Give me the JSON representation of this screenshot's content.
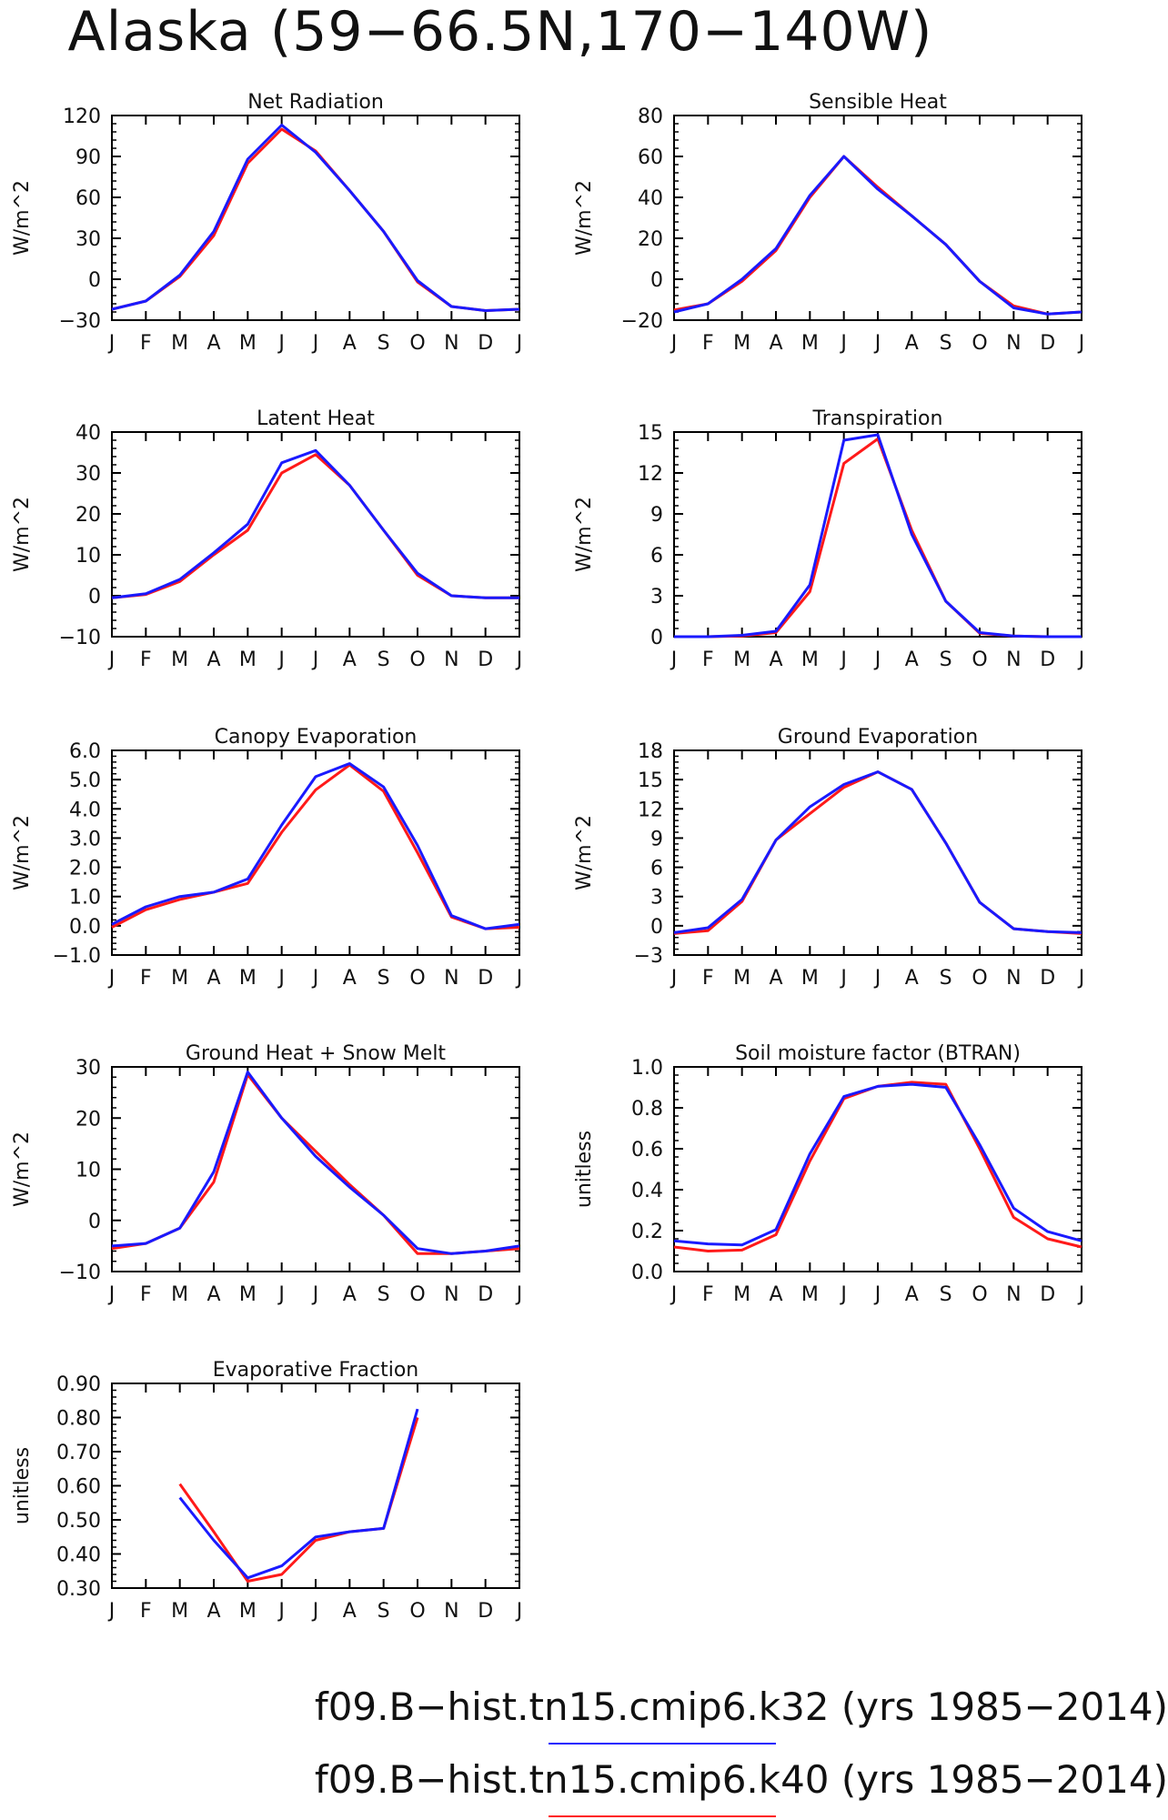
{
  "title": "Alaska (59−66.5N,170−140W)",
  "months": [
    "J",
    "F",
    "M",
    "A",
    "M",
    "J",
    "J",
    "A",
    "S",
    "O",
    "N",
    "D",
    "J"
  ],
  "series_colors": {
    "k32": "#1a1aff",
    "k40": "#ff1a1a"
  },
  "legend": [
    {
      "run": "f09.B−hist.tn15.cmip6.k32",
      "years": "(yrs 1985−2014)",
      "color": "#1a1aff"
    },
    {
      "run": "f09.B−hist.tn15.cmip6.k40",
      "years": "(yrs 1985−2014)",
      "color": "#ff1a1a"
    }
  ],
  "chart_data": [
    {
      "type": "line",
      "title": "Net Radiation",
      "ylabel": "W/m^2",
      "ylim": [
        -30,
        120
      ],
      "yticks": [
        "−30",
        "0",
        "30",
        "60",
        "90",
        "120"
      ],
      "series": [
        {
          "name": "f09.B−hist.tn15.cmip6.k32",
          "values": [
            -22,
            -16,
            3,
            35,
            88,
            113,
            93,
            65,
            35,
            -1,
            -20,
            -23,
            -22
          ]
        },
        {
          "name": "f09.B−hist.tn15.cmip6.k40",
          "values": [
            -22,
            -16,
            2,
            32,
            85,
            110,
            94,
            65,
            35,
            -2,
            -20,
            -23,
            -22
          ]
        }
      ]
    },
    {
      "type": "line",
      "title": "Sensible Heat",
      "ylabel": "W/m^2",
      "ylim": [
        -20,
        80
      ],
      "yticks": [
        "−20",
        "0",
        "20",
        "40",
        "60",
        "80"
      ],
      "series": [
        {
          "name": "f09.B−hist.tn15.cmip6.k32",
          "values": [
            -16,
            -12,
            0,
            15,
            41,
            60,
            44,
            31,
            17,
            -1,
            -14,
            -17,
            -16
          ]
        },
        {
          "name": "f09.B−hist.tn15.cmip6.k40",
          "values": [
            -15,
            -12,
            -1,
            14,
            40,
            60,
            45,
            31,
            17,
            -1,
            -13,
            -17,
            -16
          ]
        }
      ]
    },
    {
      "type": "line",
      "title": "Latent Heat",
      "ylabel": "W/m^2",
      "ylim": [
        -10,
        40
      ],
      "yticks": [
        "−10",
        "0",
        "10",
        "20",
        "30",
        "40"
      ],
      "series": [
        {
          "name": "f09.B−hist.tn15.cmip6.k32",
          "values": [
            -0.5,
            0.5,
            4,
            10.5,
            17.5,
            32.5,
            35.5,
            27,
            16,
            5.5,
            0,
            -0.5,
            -0.5
          ]
        },
        {
          "name": "f09.B−hist.tn15.cmip6.k40",
          "values": [
            -0.5,
            0.3,
            3.5,
            10,
            16,
            30,
            34.5,
            27,
            16,
            5,
            0,
            -0.5,
            -0.5
          ]
        }
      ]
    },
    {
      "type": "line",
      "title": "Transpiration",
      "ylabel": "W/m^2",
      "ylim": [
        0,
        15
      ],
      "yticks": [
        "0",
        "3",
        "6",
        "9",
        "12",
        "15"
      ],
      "series": [
        {
          "name": "f09.B−hist.tn15.cmip6.k32",
          "values": [
            0,
            0,
            0.1,
            0.4,
            3.8,
            14.4,
            14.8,
            7.5,
            2.6,
            0.3,
            0.05,
            0,
            0
          ]
        },
        {
          "name": "f09.B−hist.tn15.cmip6.k40",
          "values": [
            0,
            0,
            0.05,
            0.3,
            3.3,
            12.7,
            14.5,
            7.8,
            2.6,
            0.25,
            0.05,
            0,
            0
          ]
        }
      ]
    },
    {
      "type": "line",
      "title": "Canopy Evaporation",
      "ylabel": "W/m^2",
      "ylim": [
        -1,
        6
      ],
      "yticks": [
        "−1.0",
        "0.0",
        "1.0",
        "2.0",
        "3.0",
        "4.0",
        "5.0",
        "6.0"
      ],
      "series": [
        {
          "name": "f09.B−hist.tn15.cmip6.k32",
          "values": [
            0.05,
            0.65,
            1.0,
            1.15,
            1.6,
            3.45,
            5.1,
            5.55,
            4.75,
            2.75,
            0.35,
            -0.1,
            0.05
          ]
        },
        {
          "name": "f09.B−hist.tn15.cmip6.k40",
          "values": [
            -0.05,
            0.55,
            0.9,
            1.15,
            1.45,
            3.2,
            4.65,
            5.5,
            4.6,
            2.5,
            0.3,
            -0.1,
            -0.05
          ]
        }
      ]
    },
    {
      "type": "line",
      "title": "Ground Evaporation",
      "ylabel": "W/m^2",
      "ylim": [
        -3,
        18
      ],
      "yticks": [
        "−3",
        "0",
        "3",
        "6",
        "9",
        "12",
        "15",
        "18"
      ],
      "series": [
        {
          "name": "f09.B−hist.tn15.cmip6.k32",
          "values": [
            -0.7,
            -0.2,
            2.7,
            8.8,
            12.2,
            14.5,
            15.8,
            14,
            8.5,
            2.4,
            -0.3,
            -0.6,
            -0.7
          ]
        },
        {
          "name": "f09.B−hist.tn15.cmip6.k40",
          "values": [
            -0.8,
            -0.5,
            2.5,
            8.8,
            11.5,
            14.2,
            15.8,
            14,
            8.5,
            2.4,
            -0.3,
            -0.6,
            -0.8
          ]
        }
      ]
    },
    {
      "type": "line",
      "title": "Ground Heat + Snow Melt",
      "ylabel": "W/m^2",
      "ylim": [
        -10,
        30
      ],
      "yticks": [
        "−10",
        "0",
        "10",
        "20",
        "30"
      ],
      "series": [
        {
          "name": "f09.B−hist.tn15.cmip6.k32",
          "values": [
            -5,
            -4.5,
            -1.5,
            9.5,
            29,
            20,
            12.5,
            6.5,
            1,
            -5.5,
            -6.5,
            -6,
            -5
          ]
        },
        {
          "name": "f09.B−hist.tn15.cmip6.k40",
          "values": [
            -5.5,
            -4.5,
            -1.5,
            7.5,
            28.5,
            20,
            13.5,
            7,
            1,
            -6.5,
            -6.5,
            -6,
            -5.5
          ]
        }
      ]
    },
    {
      "type": "line",
      "title": "Soil moisture factor (BTRAN)",
      "ylabel": "unitless",
      "ylim": [
        0,
        1
      ],
      "yticks": [
        "0.0",
        "0.2",
        "0.4",
        "0.6",
        "0.8",
        "1.0"
      ],
      "series": [
        {
          "name": "f09.B−hist.tn15.cmip6.k32",
          "values": [
            0.15,
            0.135,
            0.13,
            0.205,
            0.575,
            0.855,
            0.905,
            0.915,
            0.9,
            0.62,
            0.31,
            0.195,
            0.15
          ]
        },
        {
          "name": "f09.B−hist.tn15.cmip6.k40",
          "values": [
            0.12,
            0.1,
            0.105,
            0.18,
            0.54,
            0.845,
            0.905,
            0.925,
            0.915,
            0.6,
            0.265,
            0.16,
            0.12
          ]
        }
      ]
    },
    {
      "type": "line",
      "title": "Evaporative Fraction",
      "ylabel": "unitless",
      "ylim": [
        0.3,
        0.9
      ],
      "yticks": [
        "0.30",
        "0.40",
        "0.50",
        "0.60",
        "0.70",
        "0.80",
        "0.90"
      ],
      "series": [
        {
          "name": "f09.B−hist.tn15.cmip6.k32",
          "values": [
            null,
            null,
            0.565,
            0.44,
            0.33,
            0.365,
            0.45,
            0.465,
            0.475,
            0.825,
            null,
            null,
            null
          ]
        },
        {
          "name": "f09.B−hist.tn15.cmip6.k40",
          "values": [
            null,
            null,
            0.605,
            0.465,
            0.32,
            0.34,
            0.44,
            0.465,
            0.475,
            0.8,
            null,
            null,
            null
          ]
        }
      ]
    }
  ]
}
